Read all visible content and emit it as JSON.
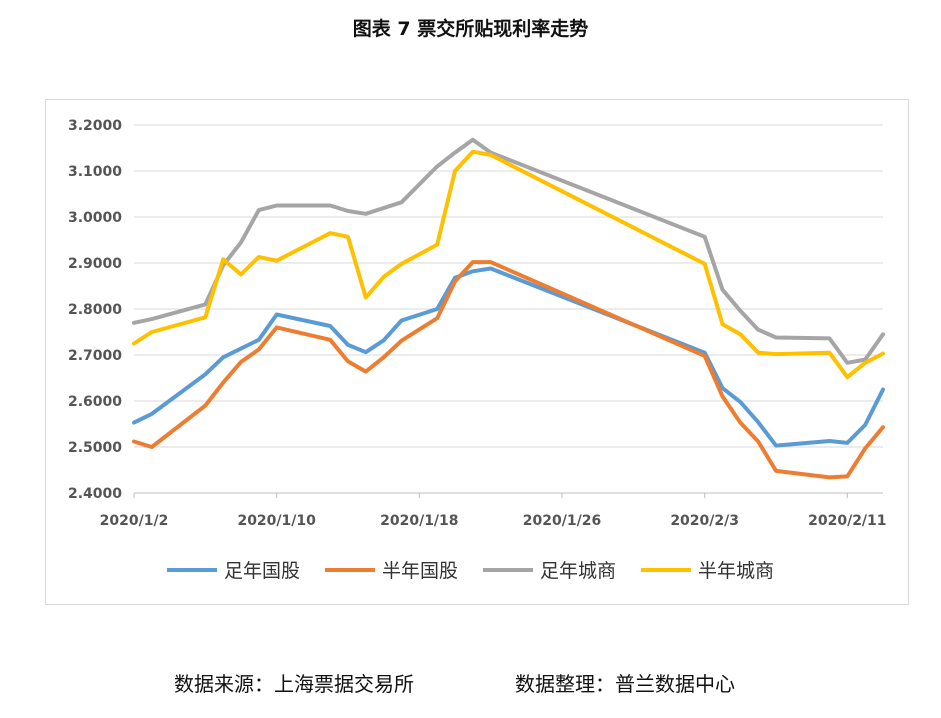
{
  "title": "图表 7  票交所贴现利率走势",
  "footer": {
    "source": "数据来源：上海票据交易所",
    "organizer": "数据整理：普兰数据中心"
  },
  "chart_data": {
    "type": "line",
    "xlim": [
      0,
      41
    ],
    "x_ticks": [
      {
        "x": 0,
        "label": "2020/1/2"
      },
      {
        "x": 8,
        "label": "2020/1/10"
      },
      {
        "x": 16,
        "label": "2020/1/18"
      },
      {
        "x": 24,
        "label": "2020/1/26"
      },
      {
        "x": 32,
        "label": "2020/2/3"
      },
      {
        "x": 40,
        "label": "2020/2/11"
      }
    ],
    "ylim": [
      2.4,
      3.2
    ],
    "y_ticks": [
      "2.4000",
      "2.5000",
      "2.6000",
      "2.7000",
      "2.8000",
      "2.9000",
      "3.0000",
      "3.1000",
      "3.2000"
    ],
    "grid": true,
    "legend_position": "bottom",
    "series": [
      {
        "name": "足年国股",
        "color": "#5B9BD5",
        "points": [
          [
            0,
            2.553
          ],
          [
            1,
            2.572
          ],
          [
            4,
            2.658
          ],
          [
            5,
            2.695
          ],
          [
            7,
            2.733
          ],
          [
            8,
            2.788
          ],
          [
            11,
            2.763
          ],
          [
            12,
            2.722
          ],
          [
            13,
            2.706
          ],
          [
            14,
            2.732
          ],
          [
            15,
            2.775
          ],
          [
            17,
            2.8
          ],
          [
            18,
            2.868
          ],
          [
            19,
            2.882
          ],
          [
            20,
            2.888
          ],
          [
            32,
            2.705
          ],
          [
            33,
            2.628
          ],
          [
            34,
            2.598
          ],
          [
            35,
            2.554
          ],
          [
            36,
            2.503
          ],
          [
            39,
            2.513
          ],
          [
            40,
            2.509
          ],
          [
            41,
            2.548
          ],
          [
            42,
            2.625
          ]
        ]
      },
      {
        "name": "半年国股",
        "color": "#ED7D31",
        "points": [
          [
            0,
            2.512
          ],
          [
            1,
            2.5
          ],
          [
            4,
            2.59
          ],
          [
            5,
            2.64
          ],
          [
            6,
            2.685
          ],
          [
            7,
            2.712
          ],
          [
            8,
            2.76
          ],
          [
            11,
            2.733
          ],
          [
            12,
            2.686
          ],
          [
            13,
            2.664
          ],
          [
            14,
            2.695
          ],
          [
            15,
            2.731
          ],
          [
            17,
            2.78
          ],
          [
            18,
            2.86
          ],
          [
            19,
            2.902
          ],
          [
            20,
            2.902
          ],
          [
            32,
            2.698
          ],
          [
            33,
            2.61
          ],
          [
            34,
            2.553
          ],
          [
            35,
            2.512
          ],
          [
            36,
            2.448
          ],
          [
            39,
            2.434
          ],
          [
            40,
            2.436
          ],
          [
            41,
            2.497
          ],
          [
            42,
            2.543
          ]
        ]
      },
      {
        "name": "足年城商",
        "color": "#A5A5A5",
        "points": [
          [
            0,
            2.77
          ],
          [
            1,
            2.778
          ],
          [
            4,
            2.81
          ],
          [
            5,
            2.895
          ],
          [
            6,
            2.945
          ],
          [
            7,
            3.015
          ],
          [
            8,
            3.025
          ],
          [
            11,
            3.025
          ],
          [
            12,
            3.013
          ],
          [
            13,
            3.007
          ],
          [
            15,
            3.032
          ],
          [
            17,
            3.11
          ],
          [
            18,
            3.14
          ],
          [
            19,
            3.168
          ],
          [
            20,
            3.14
          ],
          [
            32,
            2.957
          ],
          [
            33,
            2.842
          ],
          [
            34,
            2.796
          ],
          [
            35,
            2.755
          ],
          [
            36,
            2.738
          ],
          [
            39,
            2.736
          ],
          [
            40,
            2.683
          ],
          [
            41,
            2.69
          ],
          [
            42,
            2.745
          ]
        ]
      },
      {
        "name": "半年城商",
        "color": "#FFC000",
        "points": [
          [
            0,
            2.725
          ],
          [
            1,
            2.75
          ],
          [
            4,
            2.782
          ],
          [
            5,
            2.908
          ],
          [
            6,
            2.875
          ],
          [
            7,
            2.913
          ],
          [
            8,
            2.905
          ],
          [
            11,
            2.965
          ],
          [
            12,
            2.957
          ],
          [
            13,
            2.825
          ],
          [
            14,
            2.87
          ],
          [
            15,
            2.898
          ],
          [
            17,
            2.94
          ],
          [
            18,
            3.1
          ],
          [
            19,
            3.142
          ],
          [
            20,
            3.135
          ],
          [
            32,
            2.898
          ],
          [
            33,
            2.767
          ],
          [
            34,
            2.745
          ],
          [
            35,
            2.705
          ],
          [
            36,
            2.702
          ],
          [
            39,
            2.705
          ],
          [
            40,
            2.652
          ],
          [
            41,
            2.683
          ],
          [
            42,
            2.703
          ]
        ]
      }
    ]
  }
}
